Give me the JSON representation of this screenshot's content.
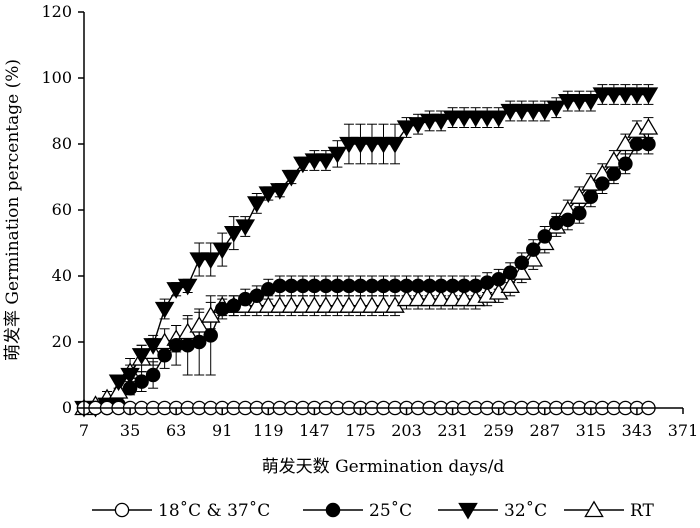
{
  "chart_data": {
    "type": "line",
    "title": "",
    "xlabel": "萌发天数 Germination days/d",
    "ylabel": "萌发率 Germination percentage (%)",
    "xlim": [
      7,
      371
    ],
    "ylim": [
      0,
      120
    ],
    "x_ticks": [
      7,
      35,
      63,
      91,
      119,
      147,
      175,
      203,
      231,
      259,
      287,
      315,
      343,
      371
    ],
    "y_ticks": [
      0,
      20,
      40,
      60,
      80,
      100,
      120
    ],
    "grid": false,
    "legend_position": "bottom",
    "series": [
      {
        "name": "18˚C & 37˚C",
        "marker": "open-circle",
        "x": [
          7,
          14,
          21,
          28,
          35,
          42,
          49,
          56,
          63,
          70,
          77,
          84,
          91,
          98,
          105,
          112,
          119,
          126,
          133,
          140,
          147,
          154,
          161,
          168,
          175,
          182,
          189,
          196,
          203,
          210,
          217,
          224,
          231,
          238,
          245,
          252,
          259,
          266,
          273,
          280,
          287,
          294,
          301,
          308,
          315,
          322,
          329,
          336,
          343,
          350
        ],
        "values": [
          0,
          0,
          0,
          0,
          0,
          0,
          0,
          0,
          0,
          0,
          0,
          0,
          0,
          0,
          0,
          0,
          0,
          0,
          0,
          0,
          0,
          0,
          0,
          0,
          0,
          0,
          0,
          0,
          0,
          0,
          0,
          0,
          0,
          0,
          0,
          0,
          0,
          0,
          0,
          0,
          0,
          0,
          0,
          0,
          0,
          0,
          0,
          0,
          0,
          0
        ],
        "errors": []
      },
      {
        "name": "25˚C",
        "marker": "filled-circle",
        "x": [
          7,
          14,
          21,
          28,
          35,
          42,
          49,
          56,
          63,
          70,
          77,
          84,
          91,
          98,
          105,
          112,
          119,
          126,
          133,
          140,
          147,
          154,
          161,
          168,
          175,
          182,
          189,
          196,
          203,
          210,
          217,
          224,
          231,
          238,
          245,
          252,
          259,
          266,
          273,
          280,
          287,
          294,
          301,
          308,
          315,
          322,
          329,
          336,
          343,
          350
        ],
        "values": [
          0,
          0,
          0,
          1,
          6,
          8,
          10,
          16,
          19,
          19,
          20,
          22,
          30,
          31,
          33,
          34,
          36,
          37,
          37,
          37,
          37,
          37,
          37,
          37,
          37,
          37,
          37,
          37,
          37,
          37,
          37,
          37,
          37,
          37,
          37,
          38,
          39,
          41,
          44,
          48,
          52,
          56,
          57,
          59,
          64,
          68,
          71,
          74,
          80,
          80
        ],
        "errors": [
          0,
          0,
          0,
          1,
          2,
          3,
          4,
          4,
          6,
          9,
          10,
          12,
          3,
          3,
          3,
          3,
          3,
          3,
          3,
          3,
          3,
          3,
          3,
          3,
          3,
          3,
          3,
          3,
          3,
          3,
          3,
          3,
          3,
          3,
          3,
          3,
          3,
          3,
          3,
          3,
          3,
          3,
          3,
          3,
          3,
          3,
          3,
          3,
          3,
          3
        ]
      },
      {
        "name": "32˚C",
        "marker": "filled-triangle-down",
        "x": [
          7,
          14,
          21,
          28,
          35,
          42,
          49,
          56,
          63,
          70,
          77,
          84,
          91,
          98,
          105,
          112,
          119,
          126,
          133,
          140,
          147,
          154,
          161,
          168,
          175,
          182,
          189,
          196,
          203,
          210,
          217,
          224,
          231,
          238,
          245,
          252,
          259,
          266,
          273,
          280,
          287,
          294,
          301,
          308,
          315,
          322,
          329,
          336,
          343,
          350
        ],
        "values": [
          0,
          0,
          1,
          8,
          10,
          16,
          19,
          30,
          36,
          37,
          45,
          45,
          48,
          53,
          55,
          62,
          65,
          66,
          70,
          74,
          75,
          75,
          77,
          80,
          80,
          80,
          80,
          80,
          85,
          86,
          87,
          87,
          88,
          88,
          88,
          88,
          88,
          90,
          90,
          90,
          90,
          91,
          93,
          93,
          93,
          95,
          95,
          95,
          95,
          95
        ],
        "errors": [
          0,
          0,
          1,
          2,
          3,
          3,
          3,
          3,
          2,
          2,
          5,
          5,
          5,
          5,
          3,
          3,
          2,
          2,
          2,
          2,
          3,
          3,
          4,
          6,
          6,
          6,
          6,
          6,
          3,
          3,
          3,
          3,
          3,
          3,
          3,
          3,
          3,
          3,
          3,
          3,
          3,
          3,
          3,
          3,
          3,
          3,
          3,
          3,
          3,
          3
        ]
      },
      {
        "name": "RT",
        "marker": "open-triangle-up",
        "x": [
          7,
          14,
          21,
          28,
          35,
          42,
          49,
          56,
          63,
          70,
          77,
          84,
          91,
          98,
          105,
          112,
          119,
          126,
          133,
          140,
          147,
          154,
          161,
          168,
          175,
          182,
          189,
          196,
          203,
          210,
          217,
          224,
          231,
          238,
          245,
          252,
          259,
          266,
          273,
          280,
          287,
          294,
          301,
          308,
          315,
          322,
          329,
          336,
          343,
          350
        ],
        "values": [
          0,
          1,
          3,
          5,
          11,
          15,
          17,
          20,
          21,
          23,
          25,
          28,
          31,
          31,
          31,
          31,
          31,
          31,
          31,
          31,
          31,
          31,
          31,
          31,
          31,
          31,
          31,
          31,
          33,
          33,
          33,
          33,
          33,
          33,
          33,
          34,
          35,
          37,
          41,
          45,
          50,
          55,
          60,
          64,
          68,
          71,
          75,
          80,
          84,
          85
        ],
        "errors": [
          0,
          1,
          2,
          3,
          4,
          4,
          4,
          4,
          4,
          4,
          4,
          4,
          3,
          3,
          3,
          3,
          3,
          3,
          3,
          3,
          3,
          3,
          3,
          3,
          3,
          3,
          3,
          3,
          3,
          3,
          3,
          3,
          3,
          3,
          3,
          3,
          3,
          3,
          3,
          3,
          3,
          3,
          3,
          3,
          3,
          3,
          3,
          3,
          3,
          3
        ]
      }
    ]
  }
}
